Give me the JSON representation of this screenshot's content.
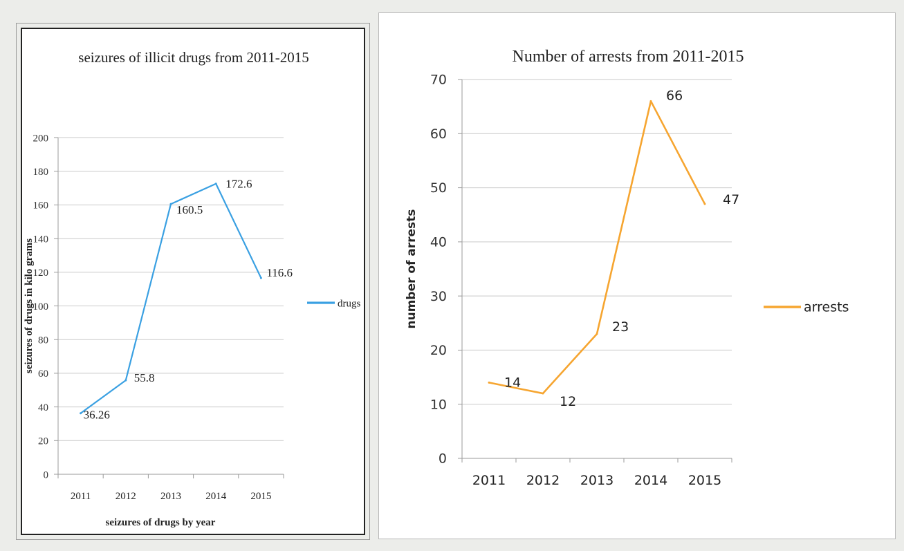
{
  "chart_data": [
    {
      "type": "line",
      "title": "seizures of illicit drugs from 2011-2015",
      "xlabel": "seizures of drugs by year",
      "ylabel": "seizures of drugs in kilo grams",
      "categories": [
        "2011",
        "2012",
        "2013",
        "2014",
        "2015"
      ],
      "ylim": [
        0,
        200
      ],
      "yticks": [
        0,
        20,
        40,
        60,
        80,
        100,
        120,
        140,
        160,
        180,
        200
      ],
      "grid": true,
      "legend": "right",
      "series": [
        {
          "name": "drugs",
          "color": "#3aa0e2",
          "values": [
            36.26,
            55.8,
            160.5,
            172.6,
            116.6
          ],
          "labels": [
            "36.26",
            "55.8",
            "160.5",
            "172.6",
            "116.6"
          ]
        }
      ]
    },
    {
      "type": "line",
      "title": "Number of arrests from 2011-2015",
      "xlabel": "",
      "ylabel": "number of arrests",
      "categories": [
        "2011",
        "2012",
        "2013",
        "2014",
        "2015"
      ],
      "ylim": [
        0,
        70
      ],
      "yticks": [
        0,
        10,
        20,
        30,
        40,
        50,
        60,
        70
      ],
      "grid": true,
      "legend": "right",
      "series": [
        {
          "name": "arrests",
          "color": "#f6a530",
          "values": [
            14,
            12,
            23,
            66,
            47
          ],
          "labels": [
            "14",
            "12",
            "23",
            "66",
            "47"
          ]
        }
      ]
    }
  ]
}
